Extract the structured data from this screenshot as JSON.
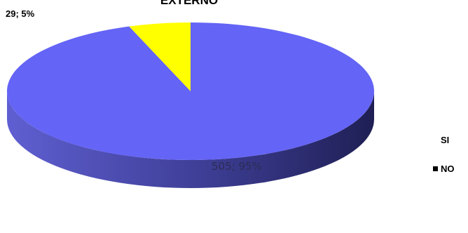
{
  "chart_data": {
    "type": "pie",
    "title": "EXTERNO",
    "categories": [
      "SI",
      "NO"
    ],
    "values": [
      29,
      505
    ],
    "percentages": [
      5,
      95
    ],
    "data_labels": [
      "29; 5%",
      "505; 95%"
    ],
    "colors": {
      "SI": "#ffff00",
      "NO": "#6464f6",
      "NO_side_dark": "#2a2a6a"
    },
    "legend": {
      "items": [
        "SI",
        "NO"
      ],
      "placement": "right"
    },
    "style": "3d"
  }
}
